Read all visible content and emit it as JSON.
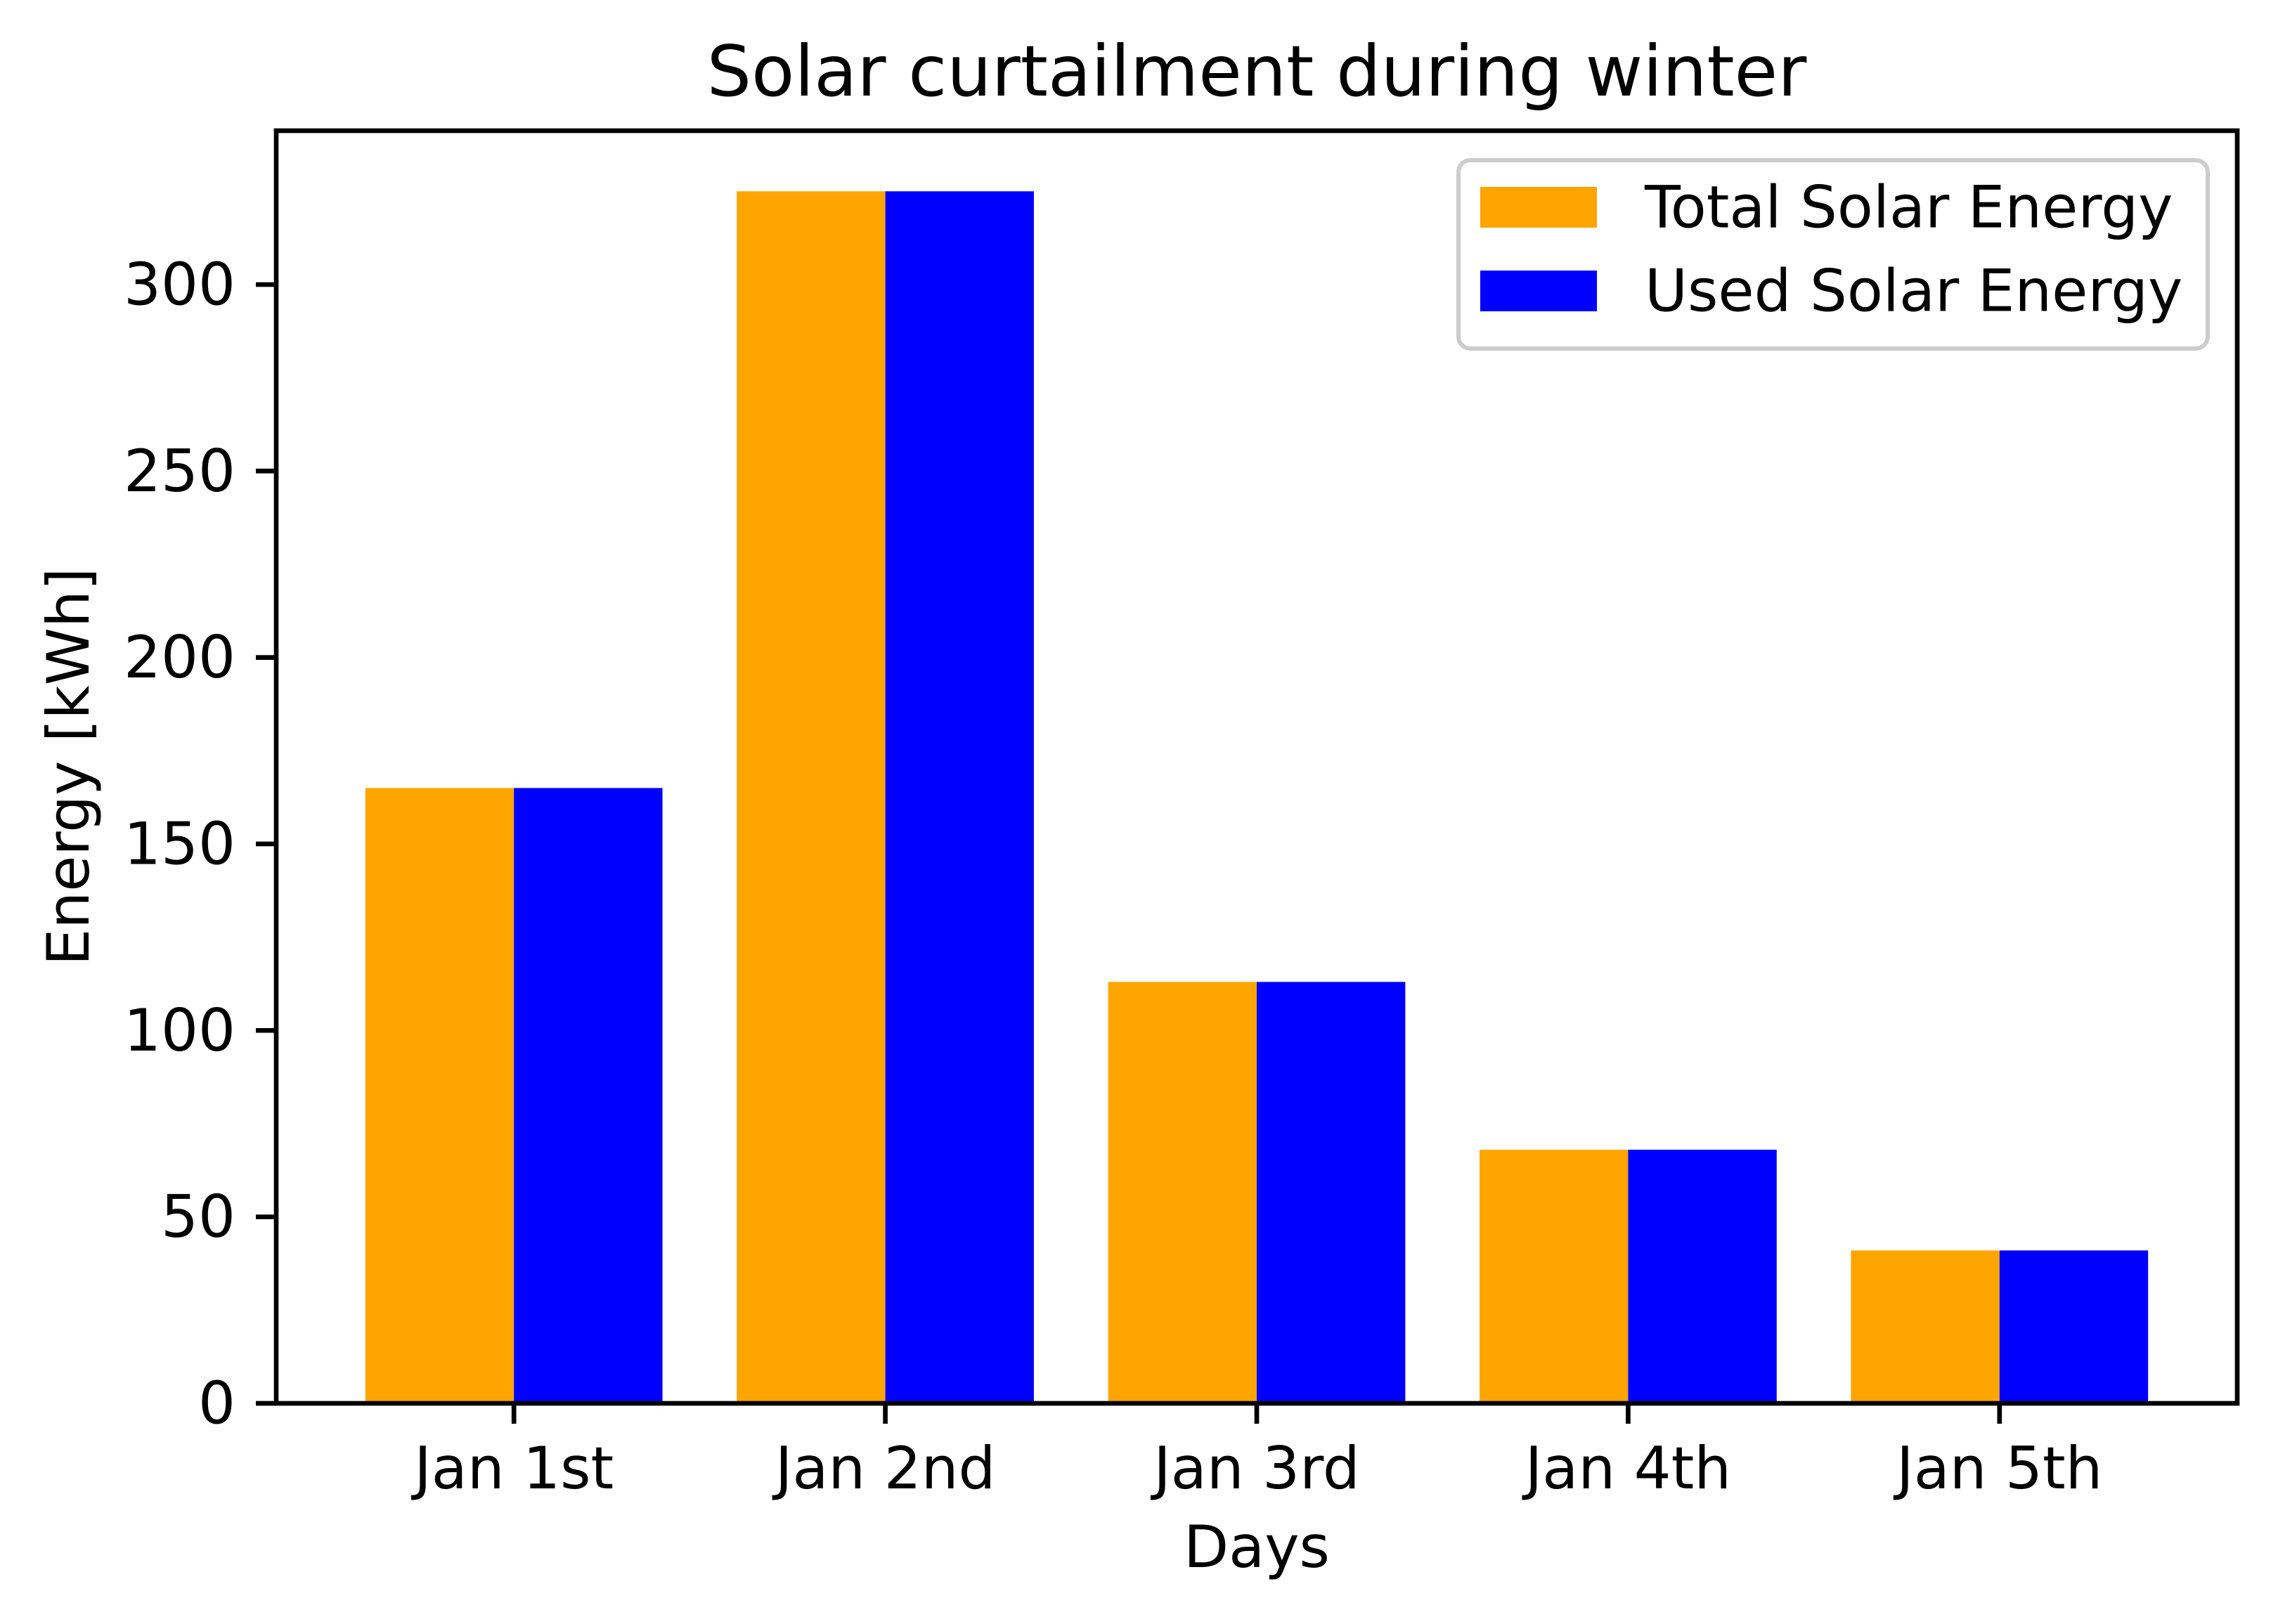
{
  "chart_data": {
    "type": "bar",
    "title": "Solar curtailment during winter",
    "xlabel": "Days",
    "ylabel": "Energy [kWh]",
    "categories": [
      "Jan 1st",
      "Jan 2nd",
      "Jan 3rd",
      "Jan 4th",
      "Jan 5th"
    ],
    "series": [
      {
        "name": "Total Solar Energy",
        "values": [
          165,
          325,
          113,
          68,
          41
        ],
        "color": "#FFA500"
      },
      {
        "name": "Used Solar Energy",
        "values": [
          165,
          325,
          113,
          68,
          41
        ],
        "color": "#0000FF"
      }
    ],
    "ylim": [
      0,
      341.25
    ],
    "yticks": [
      0,
      50,
      100,
      150,
      200,
      250,
      300
    ],
    "grid": false,
    "legend_position": "upper right"
  }
}
